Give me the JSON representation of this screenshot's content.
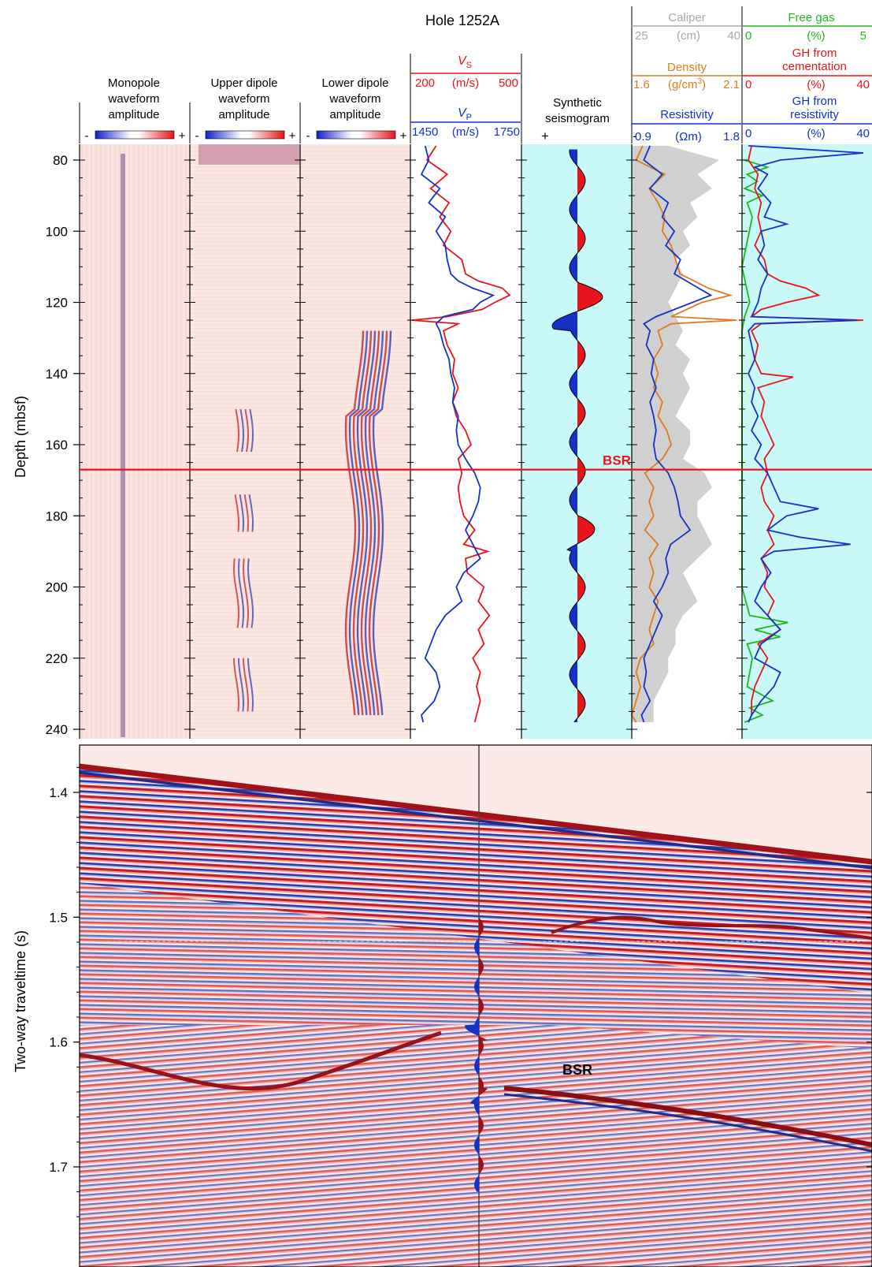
{
  "title": "Hole 1252A",
  "colors": {
    "red": "#e8141b",
    "blue": "#1432c8",
    "orange": "#de7b1c",
    "green": "#1db81d",
    "gray": "#a9a9a9",
    "cyan": "#c8f8f8"
  },
  "chart_data": [
    {
      "type": "line",
      "title": "Hole 1252A",
      "ylabel": "Depth (mbsf)",
      "ylim": [
        240,
        75
      ],
      "yticks": [
        80,
        100,
        120,
        140,
        160,
        180,
        200,
        220,
        240
      ],
      "tracks": {
        "mono": {
          "label": "Monopole waveform amplitude",
          "neg": "-",
          "pos": "+"
        },
        "upper": {
          "label": "Upper dipole waveform amplitude",
          "neg": "-",
          "pos": "+"
        },
        "lower": {
          "label": "Lower dipole waveform amplitude",
          "neg": "-",
          "pos": "+"
        },
        "vel": {
          "vs": {
            "name": "V",
            "sub": "S",
            "min": "200",
            "unit": "(m/s)",
            "max": "500",
            "range": [
              200,
              500
            ]
          },
          "vp": {
            "name": "V",
            "sub": "P",
            "min": "1450",
            "unit": "(m/s)",
            "max": "1750",
            "range": [
              1450,
              1750
            ]
          }
        },
        "synthetic": {
          "label": "Synthetic seismogram",
          "pos": "+",
          "neg": "-"
        },
        "caliper": {
          "name": "Caliper",
          "min": "25",
          "unit": "(cm)",
          "max": "40",
          "range": [
            25,
            40
          ]
        },
        "density": {
          "name": "Density",
          "min": "1.6",
          "unit_a": "(g/cm",
          "unit_sup": "3",
          "unit_b": ")",
          "max": "2.1",
          "range": [
            1.6,
            2.1
          ]
        },
        "resistivity": {
          "name": "Resistivity",
          "min": "0.9",
          "unit": "(Ωm)",
          "max": "1.8",
          "range": [
            0.9,
            1.8
          ]
        },
        "freegas": {
          "name": "Free gas",
          "min": "0",
          "unit": "(%)",
          "max": "5",
          "range": [
            0,
            5
          ]
        },
        "ghcem": {
          "name_1": "GH from",
          "name_2": "cementation",
          "min": "0",
          "unit": "(%)",
          "max": "40",
          "range": [
            0,
            40
          ]
        },
        "ghres": {
          "name_1": "GH from",
          "name_2": "resistivity",
          "min": "0",
          "unit": "(%)",
          "max": "40",
          "range": [
            0,
            40
          ]
        }
      },
      "bsr": {
        "label": "BSR",
        "depth": 167
      },
      "series": [
        {
          "name": "VS",
          "track": "vel",
          "color": "red",
          "depth": [
            76,
            80,
            84,
            88,
            92,
            96,
            100,
            104,
            108,
            112,
            114,
            116,
            118,
            120,
            122,
            124,
            125,
            126,
            128,
            132,
            136,
            140,
            144,
            148,
            152,
            156,
            160,
            164,
            168,
            172,
            176,
            180,
            184,
            188,
            190,
            192,
            196,
            200,
            204,
            208,
            212,
            216,
            220,
            224,
            228,
            232,
            236,
            238
          ],
          "value": [
            270,
            245,
            300,
            255,
            305,
            280,
            310,
            290,
            340,
            350,
            385,
            450,
            470,
            430,
            395,
            300,
            205,
            330,
            290,
            300,
            320,
            315,
            330,
            315,
            325,
            350,
            365,
            330,
            340,
            330,
            335,
            345,
            375,
            345,
            410,
            350,
            355,
            400,
            385,
            415,
            385,
            400,
            370,
            390,
            380,
            390,
            380,
            375
          ]
        },
        {
          "name": "VP",
          "track": "vel",
          "color": "blue",
          "depth": [
            76,
            80,
            84,
            88,
            92,
            96,
            100,
            104,
            108,
            112,
            114,
            116,
            118,
            120,
            122,
            124,
            126,
            128,
            132,
            136,
            140,
            144,
            148,
            152,
            156,
            160,
            164,
            168,
            172,
            176,
            180,
            184,
            188,
            192,
            196,
            200,
            204,
            208,
            212,
            216,
            220,
            224,
            228,
            232,
            236,
            238
          ],
          "value": [
            1490,
            1500,
            1480,
            1530,
            1500,
            1545,
            1520,
            1545,
            1550,
            1560,
            1580,
            1620,
            1675,
            1640,
            1620,
            1540,
            1520,
            1530,
            1540,
            1555,
            1560,
            1570,
            1565,
            1580,
            1575,
            1580,
            1600,
            1625,
            1640,
            1635,
            1620,
            1600,
            1620,
            1640,
            1595,
            1575,
            1590,
            1545,
            1520,
            1505,
            1490,
            1520,
            1530,
            1515,
            1480,
            1485
          ]
        },
        {
          "name": "Caliper",
          "track": "logs",
          "color": "gray",
          "fill": true,
          "depth": [
            76,
            80,
            84,
            88,
            92,
            96,
            100,
            104,
            108,
            112,
            116,
            120,
            124,
            128,
            132,
            136,
            140,
            144,
            148,
            152,
            156,
            160,
            164,
            168,
            172,
            176,
            180,
            184,
            188,
            192,
            196,
            200,
            204,
            208,
            212,
            216,
            220,
            224,
            228,
            232,
            236,
            238
          ],
          "value": [
            30,
            37,
            34,
            36,
            33,
            34,
            32,
            33,
            31,
            32,
            31,
            30,
            31,
            32,
            31,
            33,
            32,
            33,
            32,
            31,
            33,
            33,
            32,
            35,
            36,
            34,
            34,
            35,
            36,
            34,
            32,
            33,
            34,
            32,
            31,
            31,
            30,
            30,
            29,
            28,
            28,
            28
          ]
        },
        {
          "name": "Density",
          "track": "logs",
          "color": "orange",
          "depth": [
            76,
            80,
            84,
            88,
            92,
            96,
            100,
            104,
            108,
            112,
            116,
            118,
            120,
            124,
            125,
            126,
            128,
            132,
            136,
            140,
            144,
            148,
            152,
            156,
            160,
            164,
            168,
            172,
            176,
            180,
            184,
            188,
            192,
            196,
            200,
            204,
            208,
            212,
            216,
            220,
            224,
            228,
            232,
            236,
            238
          ],
          "value": [
            1.65,
            1.62,
            1.75,
            1.68,
            1.72,
            1.75,
            1.74,
            1.78,
            1.8,
            1.82,
            1.95,
            2.05,
            1.92,
            1.78,
            2.08,
            1.78,
            1.72,
            1.74,
            1.7,
            1.72,
            1.7,
            1.74,
            1.72,
            1.76,
            1.78,
            1.74,
            1.66,
            1.7,
            1.68,
            1.7,
            1.66,
            1.72,
            1.68,
            1.7,
            1.68,
            1.72,
            1.7,
            1.68,
            1.7,
            1.64,
            1.62,
            1.64,
            1.62,
            1.6,
            1.62
          ]
        },
        {
          "name": "Resistivity",
          "track": "logs",
          "color": "blue",
          "depth": [
            76,
            80,
            84,
            88,
            92,
            96,
            100,
            104,
            108,
            112,
            116,
            118,
            120,
            124,
            126,
            128,
            132,
            136,
            140,
            144,
            148,
            152,
            156,
            160,
            164,
            168,
            172,
            176,
            180,
            184,
            188,
            192,
            196,
            200,
            204,
            208,
            212,
            216,
            220,
            224,
            228,
            232,
            236,
            238
          ],
          "value": [
            1.05,
            1.0,
            1.15,
            1.05,
            1.2,
            1.15,
            1.25,
            1.18,
            1.3,
            1.25,
            1.45,
            1.55,
            1.4,
            1.1,
            1.0,
            1.05,
            1.02,
            1.08,
            1.06,
            1.1,
            1.05,
            1.08,
            1.1,
            1.08,
            1.1,
            1.2,
            1.25,
            1.28,
            1.3,
            1.38,
            1.22,
            1.18,
            1.2,
            1.15,
            1.08,
            1.15,
            1.1,
            1.05,
            1.0,
            1.02,
            1.0,
            1.05,
            0.98,
            1.0
          ]
        },
        {
          "name": "Free gas",
          "track": "gh",
          "color": "green",
          "depth": [
            80,
            82,
            84,
            86,
            88,
            90,
            92,
            96,
            110,
            120,
            124,
            128,
            160,
            200,
            208,
            210,
            212,
            214,
            216,
            220,
            228,
            232,
            234,
            236,
            238
          ],
          "value": [
            0.1,
            1.0,
            0.2,
            0.6,
            0.1,
            0.8,
            0.2,
            0.4,
            0,
            0.3,
            0.1,
            0,
            0,
            0,
            0.3,
            1.8,
            0.5,
            1.5,
            0.2,
            0.4,
            0.2,
            1.2,
            0.3,
            0.8,
            0.1
          ]
        },
        {
          "name": "GH from cementation",
          "track": "gh",
          "color": "red",
          "depth": [
            76,
            80,
            84,
            88,
            92,
            96,
            100,
            104,
            108,
            112,
            114,
            116,
            118,
            120,
            122,
            124,
            125,
            126,
            128,
            132,
            136,
            140,
            141,
            144,
            148,
            152,
            156,
            160,
            164,
            168,
            172,
            176,
            180,
            184,
            188,
            192,
            196,
            200,
            204,
            208,
            212,
            216,
            220,
            224,
            228,
            232,
            236,
            238
          ],
          "value": [
            3,
            2,
            5,
            4,
            6,
            5,
            6,
            4,
            7,
            8,
            12,
            20,
            24,
            14,
            6,
            3,
            38,
            6,
            3,
            5,
            4,
            6,
            16,
            5,
            7,
            6,
            8,
            10,
            7,
            8,
            6,
            7,
            10,
            8,
            10,
            6,
            8,
            7,
            10,
            8,
            12,
            5,
            8,
            6,
            4,
            3,
            3,
            2
          ]
        },
        {
          "name": "GH from resistivity",
          "track": "gh",
          "color": "blue",
          "depth": [
            76,
            78,
            80,
            82,
            84,
            88,
            92,
            96,
            98,
            100,
            104,
            108,
            112,
            116,
            120,
            124,
            125,
            126,
            128,
            132,
            136,
            140,
            144,
            148,
            152,
            156,
            160,
            164,
            168,
            172,
            176,
            178,
            180,
            184,
            186,
            188,
            190,
            192,
            196,
            200,
            204,
            208,
            212,
            216,
            220,
            224,
            228,
            232,
            236,
            238
          ],
          "value": [
            2,
            38,
            12,
            4,
            8,
            5,
            9,
            7,
            14,
            6,
            7,
            5,
            8,
            6,
            5,
            3,
            36,
            4,
            2,
            3,
            4,
            2,
            4,
            3,
            5,
            3,
            6,
            4,
            8,
            10,
            12,
            24,
            14,
            8,
            18,
            34,
            10,
            6,
            9,
            6,
            4,
            8,
            12,
            6,
            4,
            12,
            10,
            6,
            3,
            2
          ]
        }
      ]
    },
    {
      "type": "heatmap",
      "ylabel": "Two-way traveltime (s)",
      "ylim": [
        1.76,
        1.36
      ],
      "yticks": [
        1.4,
        1.5,
        1.6,
        1.7
      ],
      "bsr": {
        "label": "BSR",
        "time": 1.61
      },
      "well_tie": {
        "top": 1.5,
        "bottom": 1.72
      }
    }
  ]
}
